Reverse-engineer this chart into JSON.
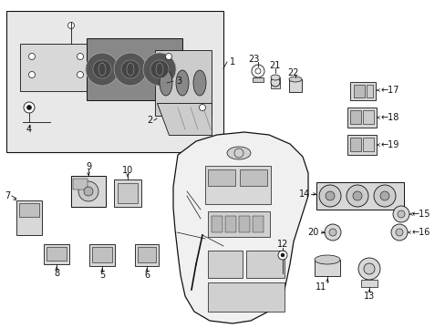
{
  "bg_color": "#ffffff",
  "lc": "#111111",
  "gc": "#cccccc",
  "box_bg": "#e8e8e8",
  "figsize": [
    4.89,
    3.6
  ],
  "dpi": 100
}
